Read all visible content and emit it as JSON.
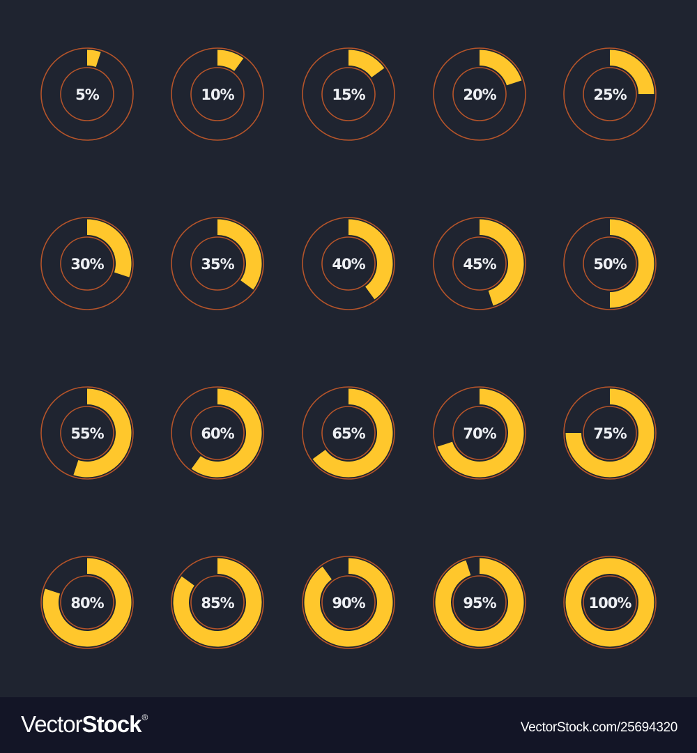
{
  "colors": {
    "background": "#1f2430",
    "footer_background": "#131526",
    "progress_fill": "#ffc72c",
    "outline": "#b5542a",
    "label_text": "#eef0f4"
  },
  "chart_data": {
    "type": "donut-progress-grid",
    "title": "",
    "layout": {
      "rows": 4,
      "columns": 5
    },
    "start_angle": "12 o'clock",
    "direction": "clockwise",
    "values": [
      5,
      10,
      15,
      20,
      25,
      30,
      35,
      40,
      45,
      50,
      55,
      60,
      65,
      70,
      75,
      80,
      85,
      90,
      95,
      100
    ],
    "labels": [
      "5%",
      "10%",
      "15%",
      "20%",
      "25%",
      "30%",
      "35%",
      "40%",
      "45%",
      "50%",
      "55%",
      "60%",
      "65%",
      "70%",
      "75%",
      "80%",
      "85%",
      "90%",
      "95%",
      "100%"
    ],
    "max": 100
  },
  "footer": {
    "brand_light": "Vector",
    "brand_bold": "Stock",
    "brand_mark": "®",
    "image_id": "VectorStock.com/25694320"
  }
}
